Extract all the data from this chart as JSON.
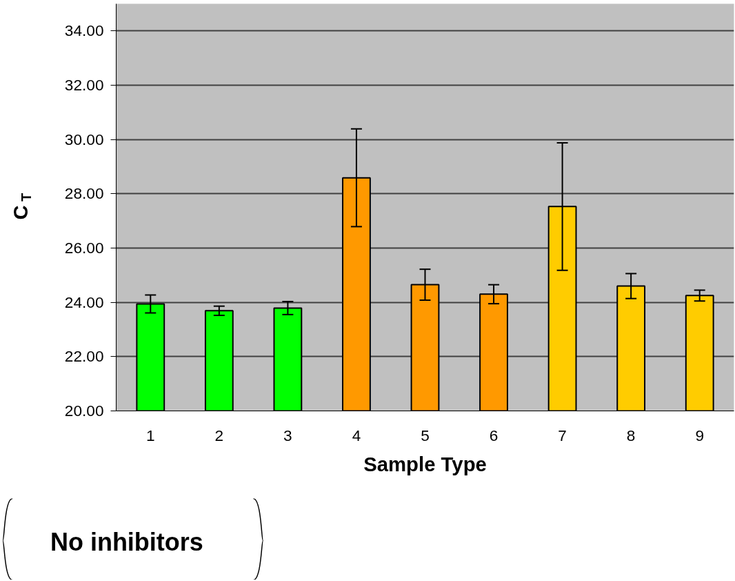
{
  "chart_data": {
    "type": "bar",
    "xlabel": "Sample Type",
    "ylabel": "C$_{T}$",
    "categories": [
      "1",
      "2",
      "3",
      "4",
      "5",
      "6",
      "7",
      "8",
      "9"
    ],
    "values": [
      23.94,
      23.69,
      23.79,
      28.59,
      24.65,
      24.3,
      27.53,
      24.6,
      24.25
    ],
    "errors": [
      0.33,
      0.17,
      0.24,
      1.8,
      0.57,
      0.35,
      2.35,
      0.46,
      0.2
    ],
    "colors": [
      "#00ff00",
      "#00ff00",
      "#00ff00",
      "#ff9900",
      "#ff9900",
      "#ff9900",
      "#ffcc00",
      "#ffcc00",
      "#ffcc00"
    ],
    "ylim": [
      20,
      35
    ],
    "yticks": [
      {
        "value": 20,
        "label": "20.00"
      },
      {
        "value": 22,
        "label": "22.00"
      },
      {
        "value": 24,
        "label": "24.00"
      },
      {
        "value": 26,
        "label": "26.00"
      },
      {
        "value": 28,
        "label": "28.00"
      },
      {
        "value": 30,
        "label": "30.00"
      },
      {
        "value": 32,
        "label": "32.00"
      },
      {
        "value": 34,
        "label": "34.00"
      }
    ],
    "grid": "y",
    "annotations": [
      "No inhibitors"
    ]
  }
}
